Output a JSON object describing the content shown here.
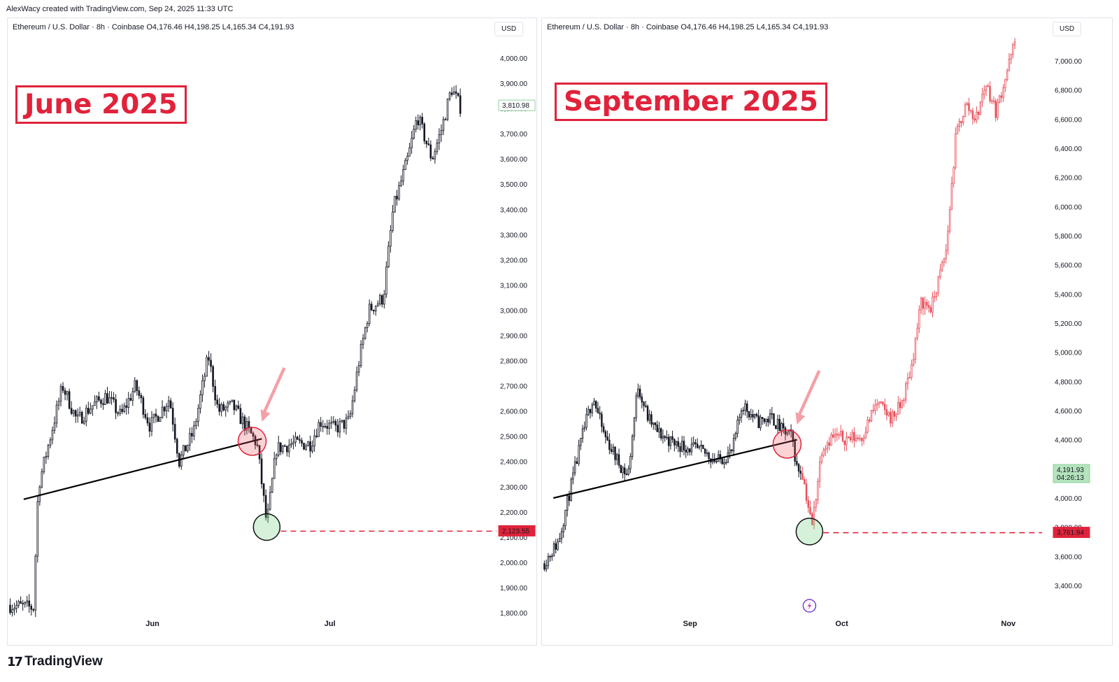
{
  "credit": "AlexWacy created with TradingView.com, Sep 24, 2025 11:33 UTC",
  "brand": {
    "logo": "17",
    "name": "TradingView"
  },
  "colors": {
    "bull_dark": "#131722",
    "bull_red": "#e8505b",
    "level_red": "#e0233b",
    "last_green": "#b5e3bd"
  },
  "icons": {
    "brand": "tradingview-logo-icon",
    "lightning": "lightning-icon"
  },
  "chart_data": [
    {
      "type": "candlestick",
      "legend": "Ethereum / U.S. Dollar · 8h · Coinbase  O4,176.46  H4,198.25  L4,165.34  C4,191.93",
      "currency": "USD",
      "period_label": "June 2025",
      "y_ticks": [
        "4,000.00",
        "3,900.00",
        "3,800.00",
        "3,700.00",
        "3,600.00",
        "3,500.00",
        "3,400.00",
        "3,300.00",
        "3,200.00",
        "3,100.00",
        "3,000.00",
        "2,900.00",
        "2,800.00",
        "2,700.00",
        "2,600.00",
        "2,500.00",
        "2,400.00",
        "2,300.00",
        "2,200.00",
        "2,100.00",
        "2,000.00",
        "1,900.00",
        "1,800.00"
      ],
      "ylim": [
        1800,
        4000
      ],
      "x_labels": [
        "Jun",
        "Jul"
      ],
      "price_tags": [
        {
          "label": "3,810.98",
          "value": 3810.98
        },
        {
          "label": "2,123.55",
          "value": 2123.55
        }
      ],
      "trendline": [
        [
          0.03,
          2250
        ],
        [
          0.52,
          2490
        ]
      ],
      "support_level": 2123.55,
      "breakdown_marker": {
        "at": 0.5,
        "price": 2480
      },
      "bottom_marker": {
        "at": 0.53,
        "price": 2140
      },
      "path": [
        [
          0,
          1830
        ],
        [
          0.05,
          1820
        ],
        [
          0.06,
          2300
        ],
        [
          0.08,
          2460
        ],
        [
          0.11,
          2700
        ],
        [
          0.14,
          2560
        ],
        [
          0.17,
          2620
        ],
        [
          0.2,
          2660
        ],
        [
          0.23,
          2580
        ],
        [
          0.26,
          2700
        ],
        [
          0.29,
          2540
        ],
        [
          0.33,
          2650
        ],
        [
          0.35,
          2400
        ],
        [
          0.38,
          2520
        ],
        [
          0.41,
          2820
        ],
        [
          0.43,
          2600
        ],
        [
          0.46,
          2620
        ],
        [
          0.49,
          2530
        ],
        [
          0.51,
          2470
        ],
        [
          0.53,
          2150
        ],
        [
          0.55,
          2450
        ],
        [
          0.58,
          2470
        ],
        [
          0.62,
          2470
        ],
        [
          0.64,
          2560
        ],
        [
          0.67,
          2530
        ],
        [
          0.7,
          2560
        ],
        [
          0.72,
          2800
        ],
        [
          0.74,
          3000
        ],
        [
          0.77,
          3050
        ],
        [
          0.79,
          3400
        ],
        [
          0.82,
          3600
        ],
        [
          0.84,
          3770
        ],
        [
          0.87,
          3600
        ],
        [
          0.89,
          3720
        ],
        [
          0.91,
          3880
        ],
        [
          0.93,
          3800
        ]
      ]
    },
    {
      "type": "candlestick",
      "legend": "Ethereum / U.S. Dollar · 8h · Coinbase  O4,176.46  H4,198.25  L4,165.34  C4,191.93",
      "currency": "USD",
      "period_label": "September 2025",
      "y_ticks": [
        "7,000.00",
        "6,800.00",
        "6,600.00",
        "6,400.00",
        "6,200.00",
        "6,000.00",
        "5,800.00",
        "5,600.00",
        "5,400.00",
        "5,200.00",
        "5,000.00",
        "4,800.00",
        "4,600.00",
        "4,400.00",
        "4,200.00",
        "4,000.00",
        "3,800.00",
        "3,600.00",
        "3,400.00"
      ],
      "ylim": [
        3250,
        7200
      ],
      "x_labels": [
        "Sep",
        "Oct",
        "Nov"
      ],
      "price_tags": [
        {
          "label": "4,191.93",
          "sub": "04:26:13",
          "value": 4191.93
        },
        {
          "label": "3,761.94",
          "value": 3761.94
        }
      ],
      "trendline": [
        [
          0.02,
          4000
        ],
        [
          0.51,
          4400
        ]
      ],
      "support_level": 3761.94,
      "breakdown_marker": {
        "at": 0.49,
        "price": 4370
      },
      "bottom_marker": {
        "at": 0.535,
        "price": 3770
      },
      "actual_until": 0.52,
      "path": [
        [
          0,
          3550
        ],
        [
          0.03,
          3700
        ],
        [
          0.05,
          4000
        ],
        [
          0.08,
          4450
        ],
        [
          0.1,
          4700
        ],
        [
          0.12,
          4450
        ],
        [
          0.15,
          4250
        ],
        [
          0.17,
          4150
        ],
        [
          0.19,
          4780
        ],
        [
          0.21,
          4550
        ],
        [
          0.23,
          4450
        ],
        [
          0.26,
          4380
        ],
        [
          0.3,
          4340
        ],
        [
          0.33,
          4300
        ],
        [
          0.35,
          4250
        ],
        [
          0.38,
          4320
        ],
        [
          0.4,
          4650
        ],
        [
          0.43,
          4520
        ],
        [
          0.46,
          4550
        ],
        [
          0.48,
          4460
        ],
        [
          0.5,
          4420
        ],
        [
          0.51,
          4200
        ],
        [
          0.52,
          4190
        ],
        [
          0.54,
          3800
        ],
        [
          0.56,
          4350
        ],
        [
          0.58,
          4420
        ],
        [
          0.61,
          4410
        ],
        [
          0.64,
          4420
        ],
        [
          0.67,
          4650
        ],
        [
          0.7,
          4550
        ],
        [
          0.72,
          4640
        ],
        [
          0.74,
          4900
        ],
        [
          0.76,
          5350
        ],
        [
          0.78,
          5300
        ],
        [
          0.81,
          5700
        ],
        [
          0.83,
          6500
        ],
        [
          0.85,
          6700
        ],
        [
          0.87,
          6600
        ],
        [
          0.89,
          6850
        ],
        [
          0.91,
          6650
        ],
        [
          0.93,
          6900
        ],
        [
          0.95,
          7150
        ]
      ]
    }
  ]
}
